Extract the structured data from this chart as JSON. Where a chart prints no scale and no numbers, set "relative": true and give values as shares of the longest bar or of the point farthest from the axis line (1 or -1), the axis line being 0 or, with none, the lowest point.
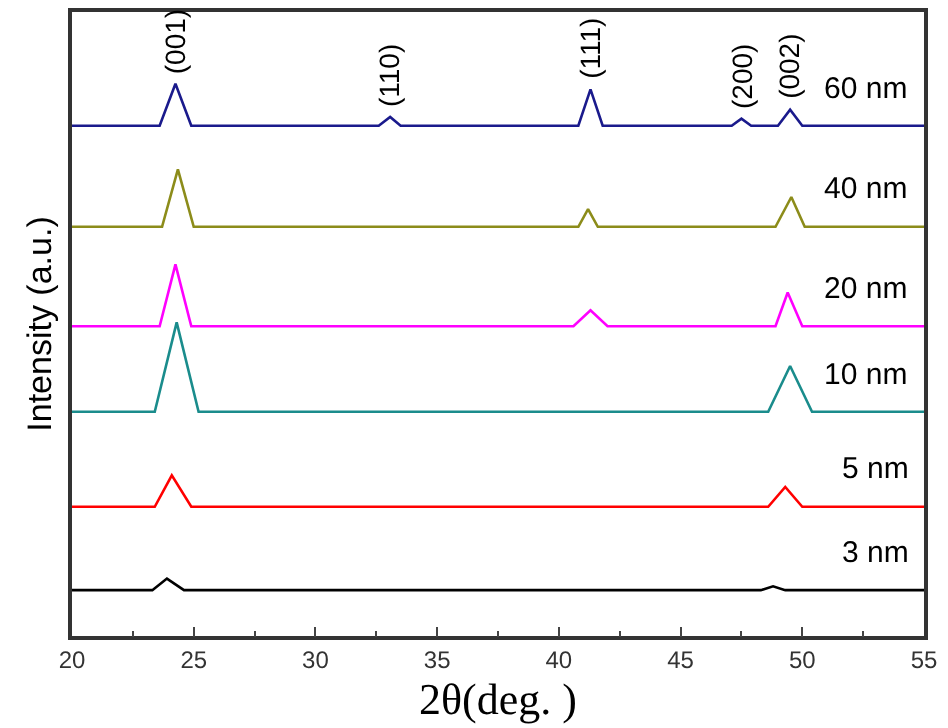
{
  "chart_data": {
    "type": "line",
    "relative": true,
    "xlabel": "2θ(deg. )",
    "ylabel": "Intensity (a.u.)",
    "xlim": [
      20,
      55
    ],
    "xticks": [
      20,
      25,
      30,
      35,
      40,
      45,
      50,
      55
    ],
    "legend": false,
    "marker": "none",
    "line_style": "solid",
    "series": [
      {
        "name": "60 nm",
        "color": "#1a1a8c",
        "x": [
          20,
          23.6,
          24.25,
          24.9,
          32.6,
          33.07,
          33.5,
          40.8,
          41.3,
          41.8,
          47.1,
          47.5,
          47.9,
          49.0,
          49.5,
          50.0,
          55
        ],
        "values": [
          0.924,
          0.924,
          1.0,
          0.924,
          0.924,
          0.94,
          0.924,
          0.924,
          0.99,
          0.924,
          0.924,
          0.937,
          0.924,
          0.924,
          0.953,
          0.924,
          0.924
        ]
      },
      {
        "name": "40 nm",
        "color": "#8c8c1a",
        "x": [
          20,
          23.7,
          24.35,
          25.0,
          40.8,
          41.2,
          41.6,
          48.9,
          49.55,
          50.1,
          55
        ],
        "values": [
          0.741,
          0.741,
          0.845,
          0.741,
          0.741,
          0.773,
          0.741,
          0.741,
          0.795,
          0.741,
          0.741
        ]
      },
      {
        "name": "20 nm",
        "color": "#ff00ff",
        "x": [
          20,
          23.6,
          24.25,
          24.9,
          40.6,
          41.3,
          42.0,
          48.9,
          49.4,
          50.0,
          55
        ],
        "values": [
          0.561,
          0.561,
          0.673,
          0.561,
          0.561,
          0.59,
          0.561,
          0.561,
          0.622,
          0.561,
          0.561
        ]
      },
      {
        "name": "10 nm",
        "color": "#1a8c8c",
        "x": [
          20,
          23.4,
          24.3,
          25.2,
          48.6,
          49.5,
          50.4,
          55
        ],
        "values": [
          0.406,
          0.406,
          0.568,
          0.406,
          0.406,
          0.489,
          0.406,
          0.406
        ]
      },
      {
        "name": "5 nm",
        "color": "#ff0000",
        "x": [
          20,
          23.4,
          24.1,
          24.9,
          48.6,
          49.3,
          50.0,
          55
        ],
        "values": [
          0.234,
          0.234,
          0.291,
          0.234,
          0.234,
          0.27,
          0.234,
          0.234
        ]
      },
      {
        "name": "3 nm",
        "color": "#000000",
        "x": [
          20,
          23.3,
          23.9,
          24.6,
          48.3,
          48.8,
          49.3,
          55
        ],
        "values": [
          0.083,
          0.083,
          0.104,
          0.083,
          0.083,
          0.09,
          0.083,
          0.083
        ]
      }
    ],
    "annotations": [
      {
        "text": "(001)",
        "x": 24.25,
        "y": 1.0
      },
      {
        "text": "(110)",
        "x": 33.07,
        "y": 0.94
      },
      {
        "text": "(111)",
        "x": 41.3,
        "y": 0.99
      },
      {
        "text": "(200)",
        "x": 47.5,
        "y": 0.937
      },
      {
        "text": "(002)",
        "x": 49.5,
        "y": 0.953
      }
    ]
  }
}
